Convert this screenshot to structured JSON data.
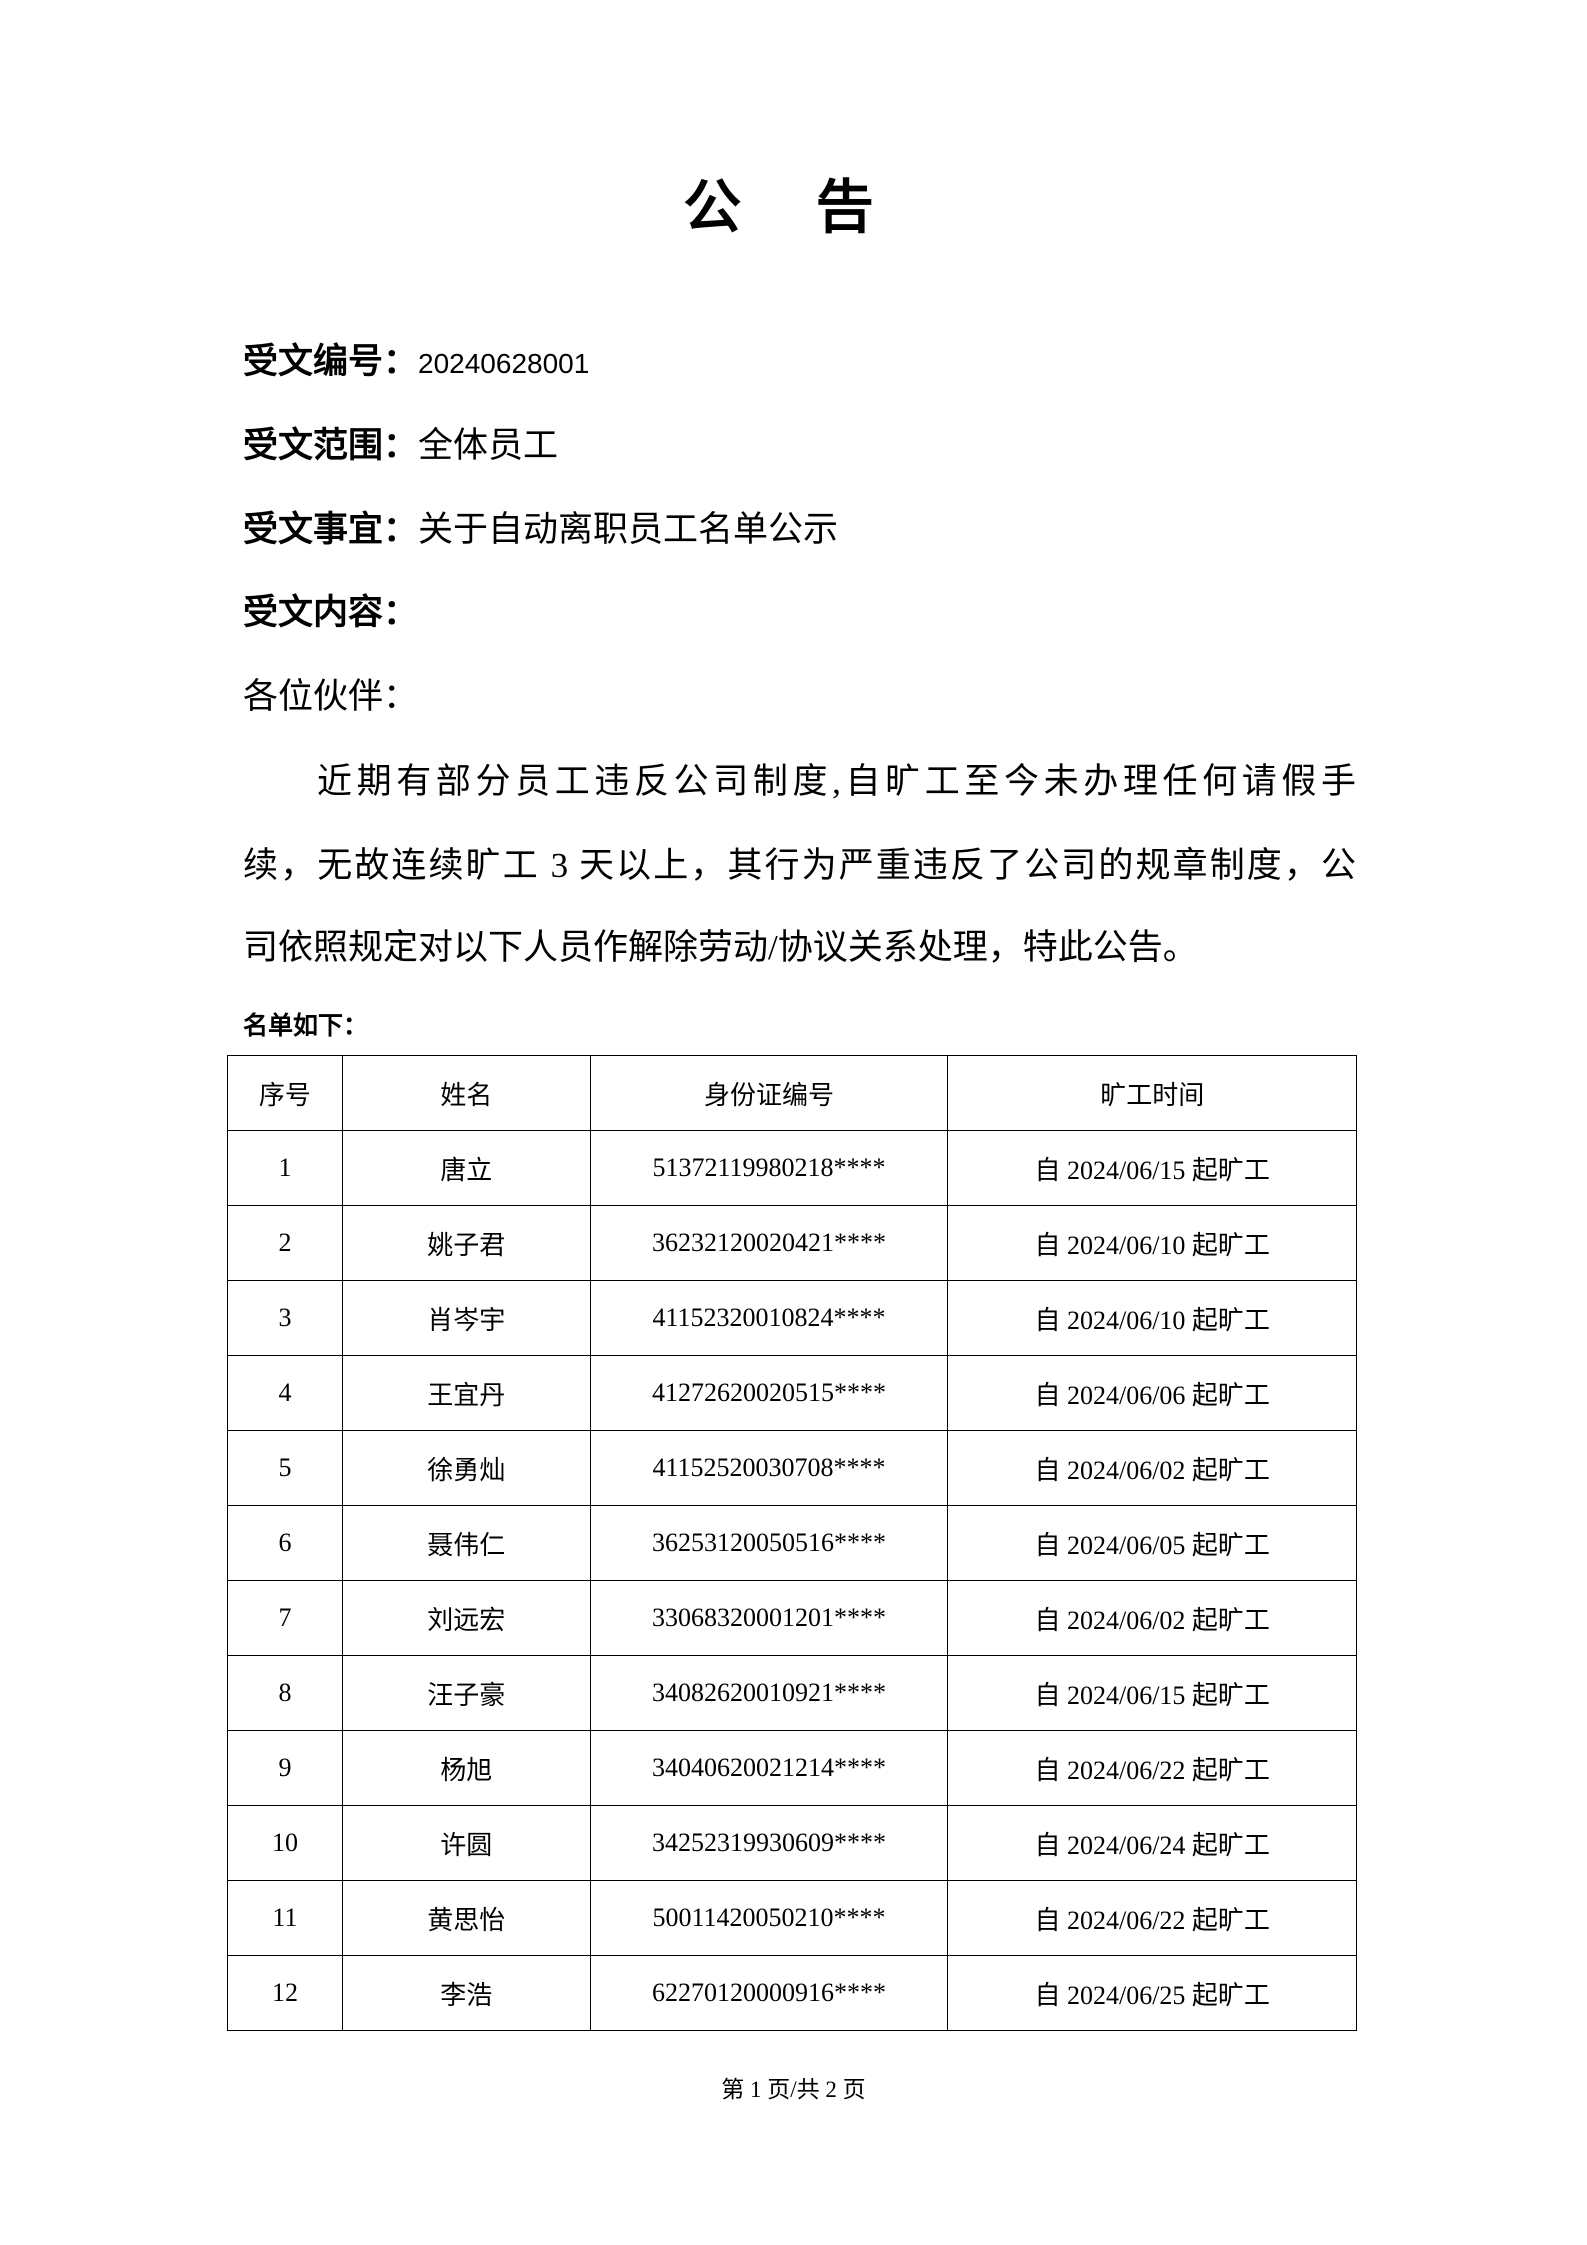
{
  "title": "公 告",
  "meta": [
    {
      "label": "受文编号：",
      "value": "20240628001"
    },
    {
      "label": "受文范围：",
      "value": "全体员工"
    },
    {
      "label": "受文事宜：",
      "value": "关于自动离职员工名单公示"
    },
    {
      "label": "受文内容：",
      "value": ""
    }
  ],
  "salutation": "各位伙伴：",
  "body_lines": [
    "近期有部分员工违反公司制度,自旷工至今未办理任何请假手",
    "续，无故连续旷工 3 天以上，其行为严重违反了公司的规章制度，公",
    "司依照规定对以下人员作解除劳动/协议关系处理，特此公告。"
  ],
  "list_title": "名单如下：",
  "table": {
    "headers": [
      "序号",
      "姓名",
      "身份证编号",
      "旷工时间"
    ],
    "rows": [
      [
        "1",
        "唐立",
        "51372119980218****",
        "自 2024/06/15 起旷工"
      ],
      [
        "2",
        "姚子君",
        "36232120020421****",
        "自 2024/06/10 起旷工"
      ],
      [
        "3",
        "肖岑宇",
        "41152320010824****",
        "自 2024/06/10 起旷工"
      ],
      [
        "4",
        "王宜丹",
        "41272620020515****",
        "自 2024/06/06 起旷工"
      ],
      [
        "5",
        "徐勇灿",
        "41152520030708****",
        "自 2024/06/02 起旷工"
      ],
      [
        "6",
        "聂伟仁",
        "36253120050516****",
        "自 2024/06/05 起旷工"
      ],
      [
        "7",
        "刘远宏",
        "33068320001201****",
        "自 2024/06/02 起旷工"
      ],
      [
        "8",
        "汪子豪",
        "34082620010921****",
        "自 2024/06/15 起旷工"
      ],
      [
        "9",
        "杨旭",
        "34040620021214****",
        "自 2024/06/22 起旷工"
      ],
      [
        "10",
        "许圆",
        "34252319930609****",
        "自 2024/06/24 起旷工"
      ],
      [
        "11",
        "黄思怡",
        "50011420050210****",
        "自 2024/06/22 起旷工"
      ],
      [
        "12",
        "李浩",
        "62270120000916****",
        "自 2024/06/25 起旷工"
      ]
    ]
  },
  "footer": "第 1 页/共 2 页"
}
